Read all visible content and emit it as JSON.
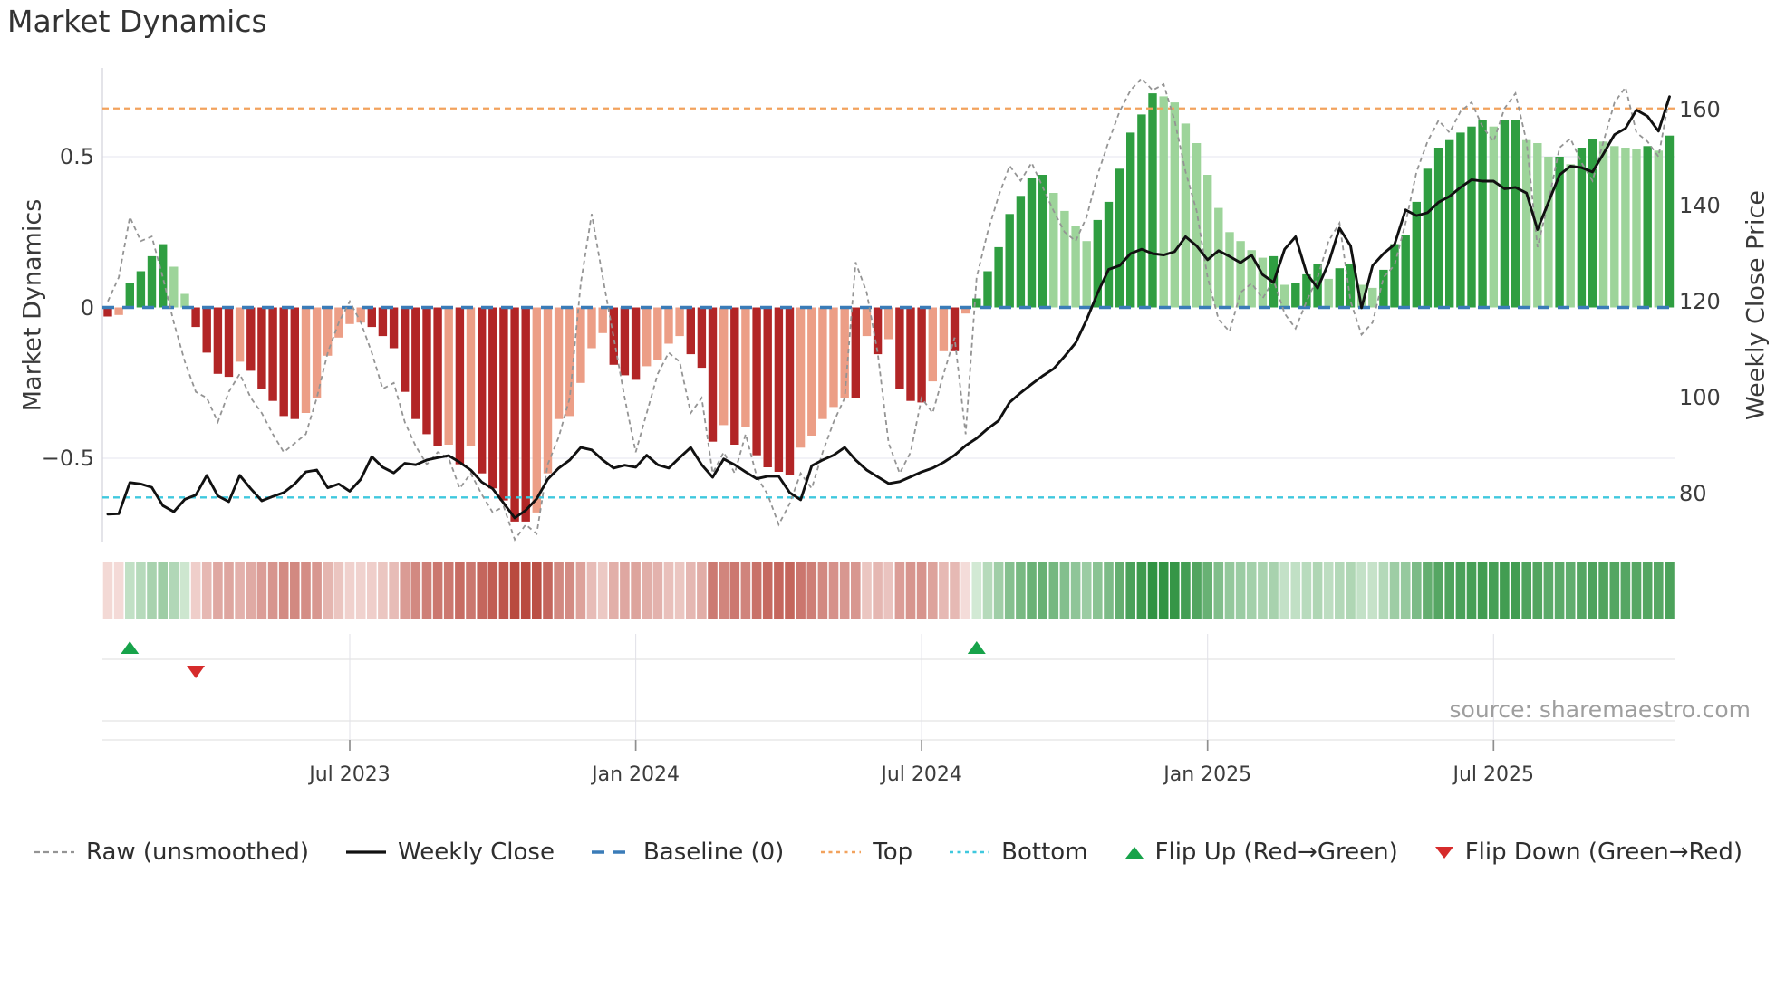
{
  "title": "Market Dynamics",
  "source": "source: sharemaestro.com",
  "colors": {
    "bar_up_strong": "#2f9e41",
    "bar_up_weak": "#9dd49a",
    "bar_down_strong": "#b22526",
    "bar_down_weak": "#ec9e86",
    "weekly_close": "#111111",
    "raw_line": "#949494",
    "baseline": "#3a7cb8",
    "top_line": "#f2a25d",
    "bottom_line": "#3fc8de",
    "flip_up": "#17a34a",
    "flip_down": "#d62b2b",
    "grid": "#eaeaf2",
    "spine": "#d5d5dd",
    "panel_line": "#dcdcdc",
    "tick_mark": "#8f8f8f",
    "heat_green_dark": "#2e9240",
    "heat_red_dark": "#b8483d"
  },
  "chart_data": {
    "type": "bar",
    "title": "Market Dynamics",
    "x_unit": "weeks (Feb 2023 - Nov 2025)",
    "x_ticks": [
      {
        "index": 22,
        "label": "Jul 2023"
      },
      {
        "index": 48,
        "label": "Jan 2024"
      },
      {
        "index": 74,
        "label": "Jul 2024"
      },
      {
        "index": 100,
        "label": "Jan 2025"
      },
      {
        "index": 126,
        "label": "Jul 2025"
      }
    ],
    "left_axis": {
      "label": "Market Dynamics",
      "ticks": [
        "0.5",
        "0",
        "−0.5"
      ],
      "tick_values": [
        0.5,
        0,
        -0.5
      ],
      "range": [
        -0.78,
        0.8
      ]
    },
    "right_axis": {
      "label": "Weekly Close Price",
      "ticks": [
        "160",
        "140",
        "120",
        "100",
        "80"
      ],
      "tick_values": [
        160,
        140,
        120,
        100,
        80
      ],
      "range": [
        70,
        168
      ]
    },
    "reference_lines": {
      "baseline": {
        "label": "Baseline (0)",
        "value": 0
      },
      "top": {
        "label": "Top",
        "value": 0.66
      },
      "bottom": {
        "label": "Bottom",
        "value": -0.63
      }
    },
    "flip_markers": [
      {
        "index": 2,
        "dir": "up"
      },
      {
        "index": 8,
        "dir": "down"
      },
      {
        "index": 79,
        "dir": "up"
      }
    ],
    "bars": {
      "name": "Market Dynamics (smoothed oscillator)",
      "axis": "left",
      "values": [
        -0.03,
        -0.025,
        0.08,
        0.12,
        0.17,
        0.21,
        0.135,
        0.045,
        -0.065,
        -0.15,
        -0.22,
        -0.23,
        -0.18,
        -0.21,
        -0.27,
        -0.31,
        -0.36,
        -0.37,
        -0.35,
        -0.3,
        -0.16,
        -0.1,
        -0.055,
        -0.05,
        -0.065,
        -0.095,
        -0.135,
        -0.28,
        -0.37,
        -0.42,
        -0.46,
        -0.455,
        -0.52,
        -0.46,
        -0.55,
        -0.6,
        -0.64,
        -0.71,
        -0.71,
        -0.68,
        -0.55,
        -0.37,
        -0.36,
        -0.25,
        -0.135,
        -0.085,
        -0.19,
        -0.225,
        -0.24,
        -0.195,
        -0.175,
        -0.12,
        -0.095,
        -0.155,
        -0.2,
        -0.445,
        -0.39,
        -0.455,
        -0.395,
        -0.49,
        -0.53,
        -0.545,
        -0.555,
        -0.465,
        -0.425,
        -0.37,
        -0.33,
        -0.3,
        -0.3,
        -0.095,
        -0.155,
        -0.105,
        -0.27,
        -0.31,
        -0.315,
        -0.245,
        -0.145,
        -0.145,
        -0.02,
        0.03,
        0.12,
        0.2,
        0.31,
        0.37,
        0.43,
        0.44,
        0.38,
        0.32,
        0.27,
        0.22,
        0.29,
        0.35,
        0.46,
        0.58,
        0.64,
        0.71,
        0.7,
        0.68,
        0.61,
        0.545,
        0.44,
        0.33,
        0.25,
        0.22,
        0.19,
        0.165,
        0.17,
        0.075,
        0.08,
        0.11,
        0.145,
        0.095,
        0.13,
        0.145,
        0.075,
        0.065,
        0.125,
        0.21,
        0.24,
        0.35,
        0.46,
        0.53,
        0.555,
        0.58,
        0.6,
        0.62,
        0.6,
        0.62,
        0.62,
        0.555,
        0.545,
        0.5,
        0.5,
        0.475,
        0.53,
        0.56,
        0.55,
        0.535,
        0.53,
        0.525,
        0.535,
        0.52,
        0.57
      ]
    },
    "raw": {
      "name": "Raw (unsmoothed)",
      "axis": "left",
      "values": [
        0.02,
        0.1,
        0.3,
        0.22,
        0.235,
        0.1,
        -0.05,
        -0.18,
        -0.28,
        -0.3,
        -0.38,
        -0.28,
        -0.22,
        -0.3,
        -0.35,
        -0.42,
        -0.48,
        -0.45,
        -0.42,
        -0.3,
        -0.15,
        -0.05,
        0.02,
        -0.05,
        -0.15,
        -0.27,
        -0.25,
        -0.38,
        -0.46,
        -0.52,
        -0.48,
        -0.5,
        -0.6,
        -0.55,
        -0.62,
        -0.68,
        -0.66,
        -0.77,
        -0.72,
        -0.75,
        -0.52,
        -0.43,
        -0.3,
        0.08,
        0.31,
        0.1,
        -0.1,
        -0.3,
        -0.48,
        -0.35,
        -0.22,
        -0.15,
        -0.18,
        -0.35,
        -0.3,
        -0.55,
        -0.48,
        -0.55,
        -0.42,
        -0.56,
        -0.62,
        -0.72,
        -0.65,
        -0.55,
        -0.6,
        -0.48,
        -0.38,
        -0.3,
        0.15,
        0.05,
        -0.15,
        -0.45,
        -0.55,
        -0.48,
        -0.3,
        -0.35,
        -0.22,
        -0.1,
        -0.42,
        0.1,
        0.25,
        0.37,
        0.47,
        0.42,
        0.48,
        0.4,
        0.32,
        0.25,
        0.22,
        0.3,
        0.44,
        0.55,
        0.65,
        0.72,
        0.76,
        0.72,
        0.74,
        0.62,
        0.45,
        0.32,
        0.1,
        -0.04,
        -0.08,
        0.05,
        0.08,
        0.03,
        0.09,
        -0.02,
        -0.07,
        0.02,
        0.1,
        0.22,
        0.28,
        0.02,
        -0.09,
        -0.05,
        0.1,
        0.14,
        0.28,
        0.45,
        0.55,
        0.62,
        0.58,
        0.65,
        0.68,
        0.6,
        0.55,
        0.66,
        0.71,
        0.55,
        0.2,
        0.35,
        0.53,
        0.56,
        0.48,
        0.42,
        0.55,
        0.68,
        0.73,
        0.58,
        0.55,
        0.5,
        0.7
      ]
    },
    "weekly_close": {
      "name": "Weekly Close",
      "axis": "right",
      "values": [
        75.7,
        75.8,
        82.3,
        82.0,
        81.3,
        77.5,
        76.2,
        78.8,
        79.7,
        83.8,
        79.5,
        78.3,
        83.8,
        81.0,
        78.5,
        79.4,
        80.2,
        82.0,
        84.5,
        84.9,
        81.2,
        82.0,
        80.5,
        83.0,
        87.7,
        85.5,
        84.3,
        86.3,
        86.0,
        87.0,
        87.5,
        87.9,
        86.5,
        84.9,
        82.4,
        81.0,
        78.0,
        74.9,
        76.5,
        78.9,
        83.0,
        85.3,
        87.0,
        89.6,
        89.1,
        87.0,
        85.3,
        85.9,
        85.5,
        88.0,
        86.0,
        85.3,
        87.5,
        89.6,
        86.0,
        83.4,
        87.2,
        86.0,
        84.5,
        83.1,
        83.6,
        83.6,
        80.2,
        78.7,
        85.8,
        87.0,
        88.0,
        89.6,
        87.0,
        84.9,
        83.5,
        82.1,
        82.5,
        83.5,
        84.5,
        85.3,
        86.5,
        88.0,
        90.0,
        91.5,
        93.5,
        95.2,
        99.0,
        101.0,
        102.8,
        104.5,
        106.0,
        108.6,
        111.4,
        116.2,
        121.8,
        126.7,
        127.5,
        130.0,
        130.9,
        130.0,
        129.7,
        130.4,
        133.5,
        131.6,
        128.7,
        130.6,
        129.4,
        128.1,
        129.7,
        125.6,
        124.0,
        130.9,
        133.5,
        125.9,
        122.8,
        128.0,
        135.3,
        131.6,
        118.7,
        127.5,
        130.0,
        131.9,
        139.1,
        137.9,
        138.5,
        140.7,
        141.9,
        143.8,
        145.4,
        145.1,
        145.1,
        143.5,
        143.8,
        142.6,
        135.0,
        140.7,
        146.4,
        148.2,
        147.9,
        147.0,
        150.8,
        154.8,
        156.1,
        159.9,
        158.6,
        155.5,
        162.7
      ]
    },
    "heatmap_strip": "bar values repeated as a color-intensity heat ribbon below the plot",
    "legend_position": "bottom center",
    "grid": "horizontal at 0.5 and -0.5"
  },
  "legend": {
    "items": [
      {
        "key": "raw",
        "label": "Raw (unsmoothed)"
      },
      {
        "key": "weekly",
        "label": "Weekly Close"
      },
      {
        "key": "baseline",
        "label": "Baseline (0)"
      },
      {
        "key": "top",
        "label": "Top"
      },
      {
        "key": "bottom",
        "label": "Bottom"
      },
      {
        "key": "flip_up",
        "label": "Flip Up (Red→Green)"
      },
      {
        "key": "flip_down",
        "label": "Flip Down (Green→Red)"
      }
    ]
  }
}
